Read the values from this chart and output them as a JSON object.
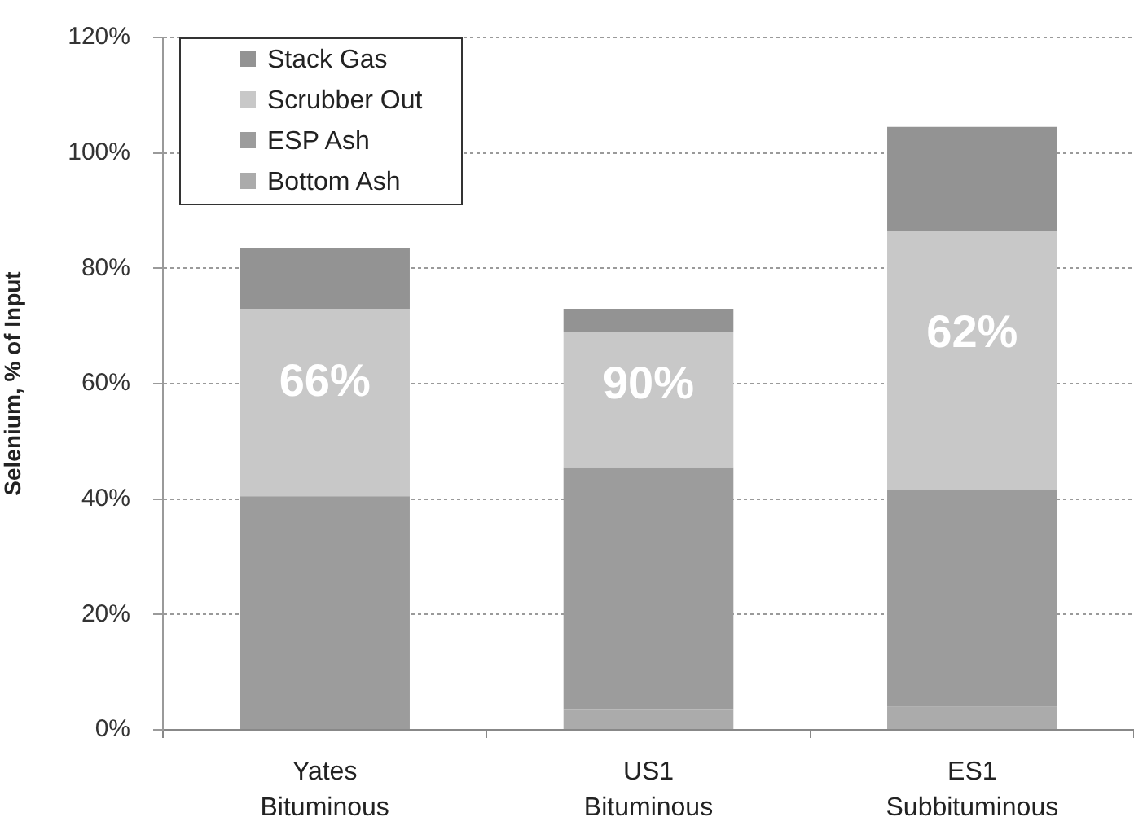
{
  "chart_data": {
    "type": "bar",
    "stacked": true,
    "ylabel": "Selenium, % of Input",
    "categories": [
      "Yates\nBituminous",
      "US1\nBituminous",
      "ES1\nSubbituminous"
    ],
    "series": [
      {
        "name": "Bottom Ash",
        "color": "#ababab",
        "values": [
          0,
          3.5,
          4
        ]
      },
      {
        "name": "ESP Ash",
        "color": "#9c9c9c",
        "values": [
          40.5,
          42,
          37.5
        ]
      },
      {
        "name": "Scrubber Out",
        "color": "#c8c8c8",
        "values": [
          32.5,
          23.5,
          45
        ]
      },
      {
        "name": "Stack Gas",
        "color": "#939393",
        "values": [
          10.5,
          4,
          18
        ]
      }
    ],
    "ylim": [
      0,
      120
    ],
    "yticks": [
      {
        "value": 0,
        "label": "0%"
      },
      {
        "value": 20,
        "label": "20%"
      },
      {
        "value": 40,
        "label": "40%"
      },
      {
        "value": 60,
        "label": "60%"
      },
      {
        "value": 80,
        "label": "80%"
      },
      {
        "value": 100,
        "label": "100%"
      },
      {
        "value": 120,
        "label": "120%"
      }
    ],
    "grid": "y",
    "legend": "top left",
    "annotations": [
      "66%",
      "90%",
      "62%"
    ]
  }
}
